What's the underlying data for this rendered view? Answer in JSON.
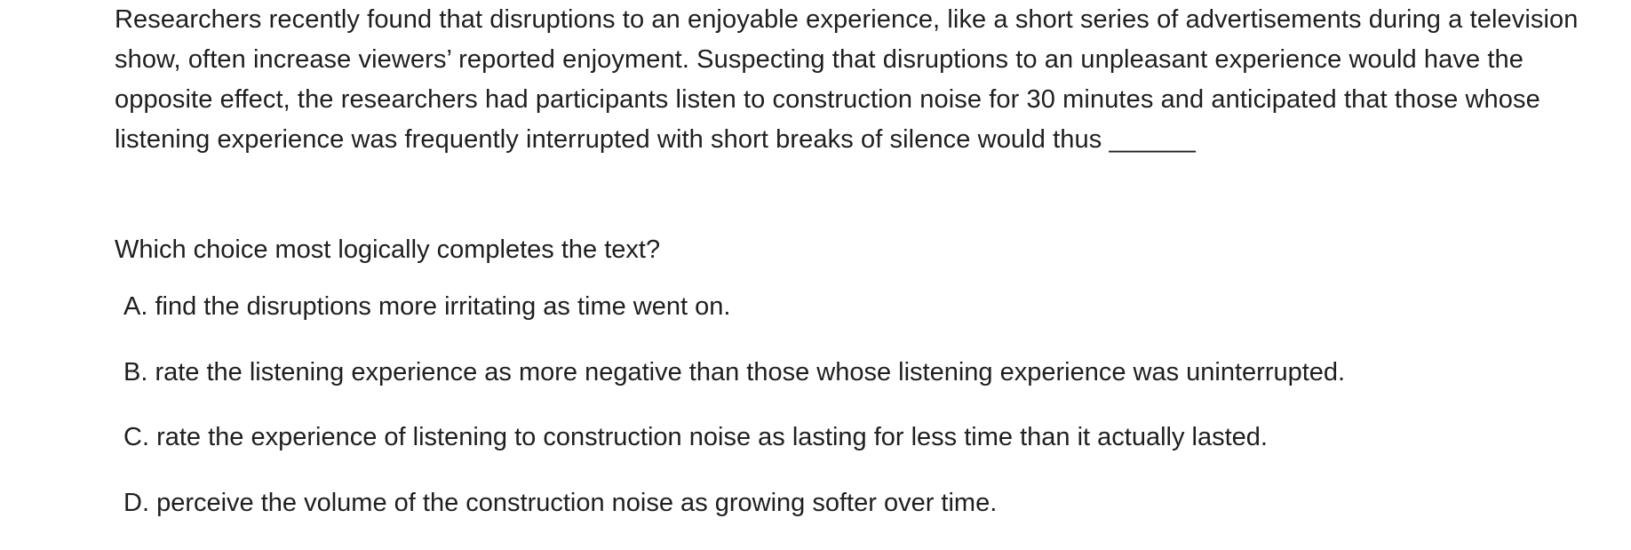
{
  "passage": {
    "text": "Researchers recently found that disruptions to an enjoyable experience, like a short series of advertisements during a television show, often increase viewers’ reported enjoyment. Suspecting that disruptions to an unpleasant experience would have the opposite effect, the researchers had participants listen to construction noise for 30 minutes and anticipated that those whose listening experience was frequently interrupted with short breaks of silence would thus",
    "blank": "______"
  },
  "question": "Which choice most logically completes the text?",
  "choices": [
    {
      "letter": "A.",
      "text": "find the disruptions more irritating as time went on."
    },
    {
      "letter": "B.",
      "text": "rate the listening experience as more negative than those whose listening experience was uninterrupted."
    },
    {
      "letter": "C.",
      "text": "rate the experience of listening to construction noise as lasting for less time than it actually lasted."
    },
    {
      "letter": "D.",
      "text": "perceive the volume of the construction noise as growing softer over time."
    }
  ]
}
